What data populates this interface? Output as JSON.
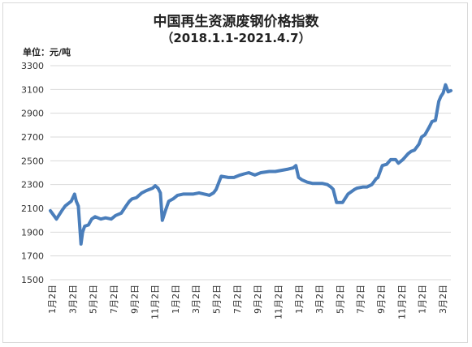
{
  "chart_data": {
    "type": "line",
    "title": "中国再生资源废钢价格指数",
    "subtitle": "（2018.1.1-2021.4.7）",
    "ylabel": "单位：元/吨",
    "xlabel": "",
    "ylim": [
      1500,
      3300
    ],
    "yticks": [
      1500,
      1700,
      1900,
      2100,
      2300,
      2500,
      2700,
      2900,
      3100,
      3300
    ],
    "xtick_labels": [
      "1月2日",
      "3月2日",
      "5月2日",
      "7月2日",
      "9月2日",
      "11月2日",
      "1月2日",
      "3月2日",
      "5月2日",
      "7月2日",
      "9月2日",
      "11月2日",
      "1月2日",
      "3月2日",
      "5月2日",
      "7月2日",
      "9月2日",
      "11月2日",
      "1月2日",
      "3月2日"
    ],
    "grid": "horizontal",
    "legend": "none",
    "line_color": "#4a7ebb",
    "series": [
      {
        "x": [
          "2018-01-02",
          "2018-01-20",
          "2018-02-05",
          "2018-02-15",
          "2018-03-05",
          "2018-03-15",
          "2018-03-20",
          "2018-03-26",
          "2018-04-03",
          "2018-04-08",
          "2018-04-14",
          "2018-04-25",
          "2018-05-05",
          "2018-05-15",
          "2018-06-01",
          "2018-06-15",
          "2018-07-02",
          "2018-07-15",
          "2018-08-01",
          "2018-08-15",
          "2018-08-25",
          "2018-09-02",
          "2018-09-15",
          "2018-10-01",
          "2018-10-15",
          "2018-11-02",
          "2018-11-10",
          "2018-11-18",
          "2018-11-25",
          "2018-12-01",
          "2018-12-10",
          "2018-12-20",
          "2019-01-02",
          "2019-01-15",
          "2019-02-01",
          "2019-02-20",
          "2019-03-02",
          "2019-03-20",
          "2019-04-05",
          "2019-04-20",
          "2019-05-02",
          "2019-05-10",
          "2019-05-25",
          "2019-06-15",
          "2019-07-02",
          "2019-07-20",
          "2019-08-01",
          "2019-08-15",
          "2019-09-02",
          "2019-09-20",
          "2019-10-15",
          "2019-11-02",
          "2019-11-20",
          "2019-12-10",
          "2019-12-25",
          "2020-01-02",
          "2020-01-10",
          "2020-01-20",
          "2020-02-05",
          "2020-02-20",
          "2020-03-02",
          "2020-03-20",
          "2020-04-05",
          "2020-04-15",
          "2020-04-22",
          "2020-05-02",
          "2020-05-20",
          "2020-06-05",
          "2020-06-25",
          "2020-07-02",
          "2020-07-20",
          "2020-08-01",
          "2020-08-15",
          "2020-08-28",
          "2020-09-02",
          "2020-09-15",
          "2020-09-28",
          "2020-10-10",
          "2020-10-25",
          "2020-11-02",
          "2020-11-15",
          "2020-12-01",
          "2020-12-10",
          "2020-12-20",
          "2021-01-02",
          "2021-01-10",
          "2021-01-20",
          "2021-02-01",
          "2021-02-10",
          "2021-02-20",
          "2021-03-02",
          "2021-03-08",
          "2021-03-15",
          "2021-03-22",
          "2021-03-30",
          "2021-04-07"
        ],
        "values": [
          2080,
          2010,
          2080,
          2120,
          2160,
          2220,
          2160,
          2120,
          1800,
          1900,
          1950,
          1960,
          2010,
          2030,
          2010,
          2020,
          2010,
          2040,
          2060,
          2120,
          2160,
          2180,
          2190,
          2230,
          2250,
          2270,
          2290,
          2270,
          2230,
          2000,
          2080,
          2160,
          2180,
          2210,
          2220,
          2220,
          2220,
          2230,
          2220,
          2210,
          2230,
          2260,
          2370,
          2360,
          2360,
          2380,
          2390,
          2400,
          2380,
          2400,
          2410,
          2410,
          2420,
          2430,
          2440,
          2460,
          2360,
          2340,
          2320,
          2310,
          2310,
          2310,
          2300,
          2280,
          2260,
          2150,
          2150,
          2220,
          2260,
          2270,
          2280,
          2280,
          2300,
          2350,
          2360,
          2460,
          2470,
          2510,
          2510,
          2480,
          2510,
          2560,
          2580,
          2590,
          2640,
          2700,
          2720,
          2780,
          2830,
          2840,
          3000,
          3040,
          3070,
          3140,
          3080,
          3090
        ]
      }
    ]
  }
}
